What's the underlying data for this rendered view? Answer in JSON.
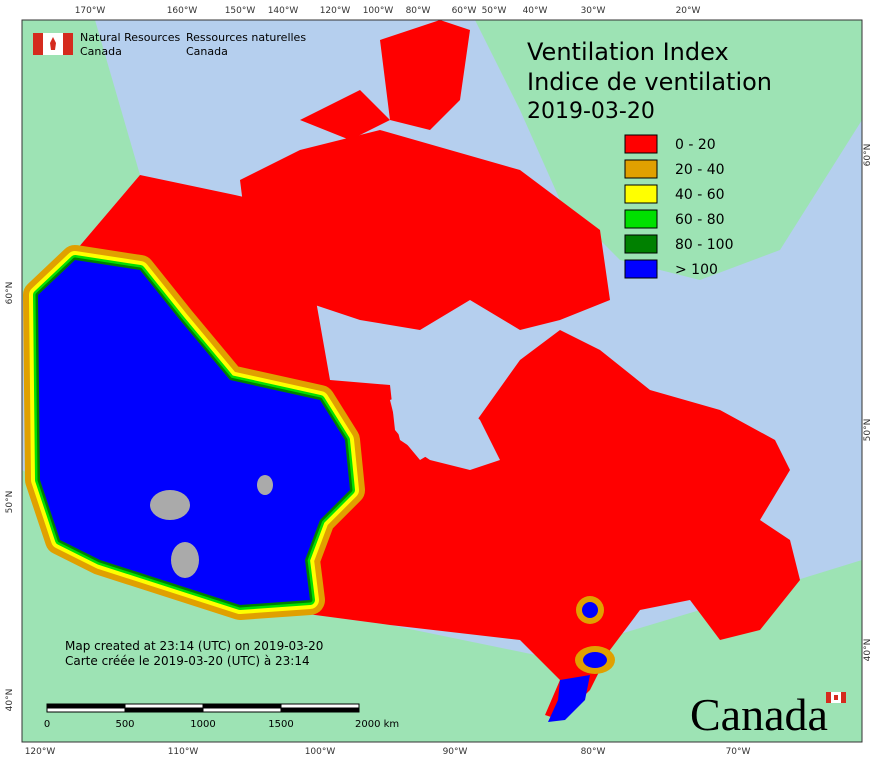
{
  "header": {
    "agency_en": [
      "Natural Resources",
      "Canada"
    ],
    "agency_fr": [
      "Ressources naturelles",
      "Canada"
    ]
  },
  "title": {
    "lines": [
      "Ventilation Index",
      "Indice de ventilation",
      "2019-03-20"
    ]
  },
  "legend": {
    "items": [
      {
        "label": "0 - 20",
        "color": "#ff0000"
      },
      {
        "label": "20 - 40",
        "color": "#e0a000"
      },
      {
        "label": "40 - 60",
        "color": "#ffff00"
      },
      {
        "label": "60 - 80",
        "color": "#00e000"
      },
      {
        "label": "80 - 100",
        "color": "#008000"
      },
      {
        "label": "> 100",
        "color": "#0000ff"
      }
    ]
  },
  "graticule": {
    "top": [
      "170°W",
      "160°W",
      "150°W",
      "140°W",
      "120°W",
      "100°W",
      "80°W",
      "60°W",
      "50°W",
      "40°W",
      "30°W",
      "20°W"
    ],
    "bottom": [
      "120°W",
      "110°W",
      "100°W",
      "90°W",
      "80°W",
      "70°W"
    ],
    "left": [
      "60°N",
      "50°N",
      "40°N"
    ],
    "right": [
      "60°N",
      "50°N",
      "40°N"
    ]
  },
  "credits": [
    "Map created at 23:14 (UTC) on 2019-03-20",
    "Carte créée le 2019-03-20 (UTC) à 23:14"
  ],
  "scale_bar": {
    "labels": [
      "0",
      "500",
      "1000",
      "1500",
      "2000 km"
    ]
  },
  "wordmark": "Canada"
}
